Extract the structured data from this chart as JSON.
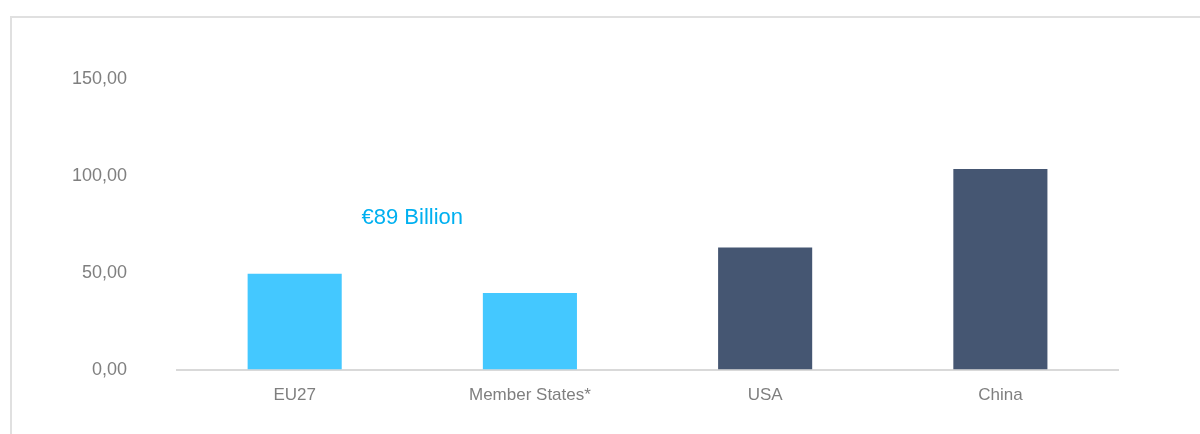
{
  "chart_data": {
    "type": "bar",
    "categories": [
      "EU27",
      "Member States*",
      "USA",
      "China"
    ],
    "values": [
      49.5,
      39.5,
      63,
      103.5
    ],
    "colors": [
      "#44c8ff",
      "#44c8ff",
      "#455672",
      "#455672"
    ],
    "ylim": [
      0,
      150
    ],
    "yticks": [
      {
        "value": 0,
        "label": "0,00"
      },
      {
        "value": 50,
        "label": "50,00"
      },
      {
        "value": 100,
        "label": "100,00"
      },
      {
        "value": 150,
        "label": "150,00"
      }
    ],
    "annotations": [
      "€89 Billion"
    ],
    "grid": false,
    "legend": false
  }
}
